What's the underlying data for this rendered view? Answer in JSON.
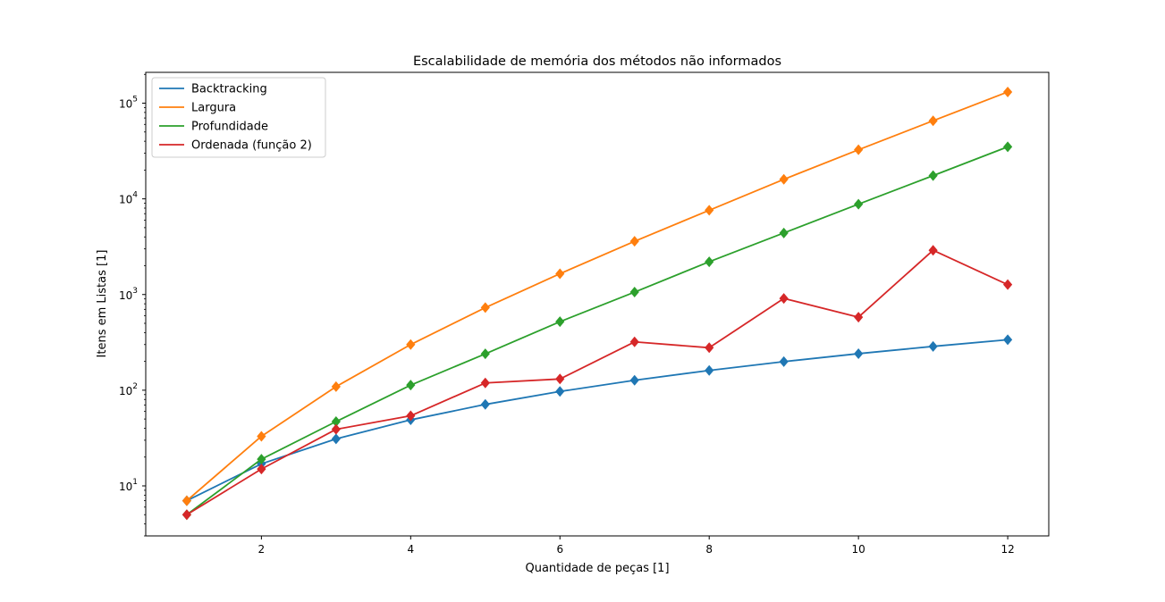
{
  "chart_data": {
    "type": "line",
    "title": "Escalabilidade de memória dos métodos não informados",
    "xlabel": "Quantidade de peças [1]",
    "ylabel": "Itens em Listas [1]",
    "yscale": "log",
    "x": [
      1,
      2,
      3,
      4,
      5,
      6,
      7,
      8,
      9,
      10,
      11,
      12
    ],
    "xlim": [
      0.45,
      12.55
    ],
    "ylim": [
      3,
      210000
    ],
    "x_ticks": [
      "2",
      "4",
      "6",
      "8",
      "10",
      "12"
    ],
    "y_ticks": [
      "10^1",
      "10^2",
      "10^3",
      "10^4",
      "10^5"
    ],
    "legend_position": "upper-left",
    "marker": "diamond",
    "series": [
      {
        "name": "Backtracking",
        "color": "#1f77b4",
        "values": [
          7,
          17,
          31,
          49,
          71,
          97,
          127,
          161,
          199,
          241,
          287,
          337
        ]
      },
      {
        "name": "Largura",
        "color": "#ff7f0e",
        "values": [
          7,
          33,
          109,
          300,
          730,
          1650,
          3600,
          7600,
          16000,
          32600,
          65500,
          131000
        ]
      },
      {
        "name": "Profundidade",
        "color": "#2ca02c",
        "values": [
          5,
          19,
          47,
          113,
          240,
          520,
          1060,
          2200,
          4400,
          8800,
          17500,
          35000
        ]
      },
      {
        "name": "Ordenada (função 2)",
        "color": "#d62728",
        "values": [
          5,
          15,
          39,
          54,
          119,
          131,
          320,
          278,
          910,
          580,
          2900,
          1270
        ]
      }
    ]
  }
}
